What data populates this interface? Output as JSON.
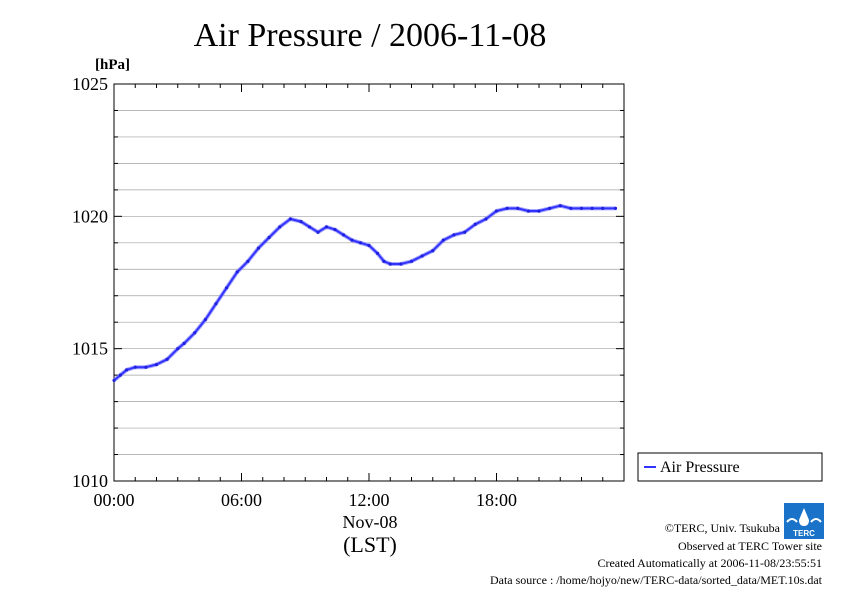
{
  "chart_data": {
    "type": "line",
    "title": "Air Pressure / 2006-11-08",
    "ylabel": "[hPa]",
    "xlabel": "Nov-08",
    "xlabel2": "(LST)",
    "ylim": [
      1010,
      1025
    ],
    "xlim": [
      0,
      24
    ],
    "grid": true,
    "legend_position": "right",
    "x_tick_labels": [
      "00:00",
      "06:00",
      "12:00",
      "18:00"
    ],
    "x_tick_values": [
      0,
      6,
      12,
      18
    ],
    "y_tick_labels": [
      "1010",
      "1015",
      "1020",
      "1025"
    ],
    "y_tick_values": [
      1010,
      1015,
      1020,
      1025
    ],
    "series": [
      {
        "name": "Air Pressure",
        "color": "#3333ff",
        "x": [
          0.0,
          0.3,
          0.6,
          1.0,
          1.5,
          2.0,
          2.5,
          3.0,
          3.3,
          3.8,
          4.3,
          4.8,
          5.3,
          5.8,
          6.3,
          6.8,
          7.3,
          7.8,
          8.3,
          8.8,
          9.2,
          9.6,
          10.0,
          10.4,
          10.8,
          11.2,
          11.6,
          12.0,
          12.4,
          12.7,
          13.0,
          13.5,
          14.0,
          14.5,
          15.0,
          15.5,
          16.0,
          16.5,
          17.0,
          17.5,
          18.0,
          18.5,
          19.0,
          19.5,
          20.0,
          20.5,
          21.0,
          21.5,
          22.0,
          22.5,
          23.0,
          23.6
        ],
        "y": [
          1013.8,
          1014.0,
          1014.2,
          1014.3,
          1014.3,
          1014.4,
          1014.6,
          1015.0,
          1015.2,
          1015.6,
          1016.1,
          1016.7,
          1017.3,
          1017.9,
          1018.3,
          1018.8,
          1019.2,
          1019.6,
          1019.9,
          1019.8,
          1019.6,
          1019.4,
          1019.6,
          1019.5,
          1019.3,
          1019.1,
          1019.0,
          1018.9,
          1018.6,
          1018.3,
          1018.2,
          1018.2,
          1018.3,
          1018.5,
          1018.7,
          1019.1,
          1019.3,
          1019.4,
          1019.7,
          1019.9,
          1020.2,
          1020.3,
          1020.3,
          1020.2,
          1020.2,
          1020.3,
          1020.4,
          1020.3,
          1020.3,
          1020.3,
          1020.3,
          1020.3
        ]
      }
    ]
  },
  "footer": {
    "copyright": "©TERC, Univ. Tsukuba",
    "observed": "Observed at TERC Tower site",
    "created": "Created Automatically at 2006-11-08/23:55:51",
    "source": "Data source : /home/hojyo/new/TERC-data/sorted_data/MET.10s.dat",
    "logo_text": "TERC"
  }
}
